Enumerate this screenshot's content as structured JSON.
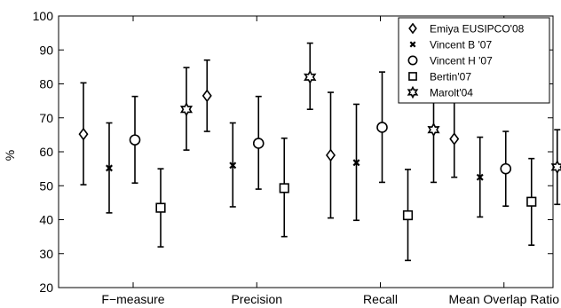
{
  "chart_data": {
    "type": "scatter",
    "title": "",
    "xlabel": "",
    "ylabel": "%",
    "ylim": [
      20,
      100
    ],
    "yticks": [
      20,
      30,
      40,
      50,
      60,
      70,
      80,
      90,
      100
    ],
    "grid": false,
    "legend_position": "top-right",
    "categories": [
      "F−measure",
      "Precision",
      "Recall",
      "Mean Overlap Ratio"
    ],
    "series": [
      {
        "name": "Emiya EUSIPCO'08",
        "marker": "diamond",
        "values": [
          65.2,
          76.5,
          59.0,
          63.8
        ],
        "lower": [
          50.3,
          66.0,
          40.5,
          52.5
        ],
        "upper": [
          80.3,
          87.0,
          77.5,
          75.3
        ]
      },
      {
        "name": "Vincent B '07",
        "marker": "x",
        "values": [
          55.2,
          56.0,
          56.8,
          52.5
        ],
        "lower": [
          42.0,
          43.8,
          39.8,
          40.8
        ],
        "upper": [
          68.5,
          68.5,
          74.0,
          64.3
        ]
      },
      {
        "name": "Vincent H '07",
        "marker": "circle",
        "values": [
          63.5,
          62.5,
          67.2,
          55.0
        ],
        "lower": [
          50.8,
          49.0,
          51.0,
          44.0
        ],
        "upper": [
          76.3,
          76.3,
          83.5,
          66.0
        ]
      },
      {
        "name": "Bertin'07",
        "marker": "square",
        "values": [
          43.5,
          49.3,
          41.3,
          45.3
        ],
        "lower": [
          32.0,
          35.0,
          28.0,
          32.5
        ],
        "upper": [
          55.0,
          64.0,
          54.8,
          58.0
        ]
      },
      {
        "name": "Marolt'04",
        "marker": "star",
        "values": [
          72.5,
          82.0,
          66.5,
          55.5
        ],
        "lower": [
          60.5,
          72.5,
          51.0,
          44.5
        ],
        "upper": [
          84.8,
          92.0,
          82.0,
          66.5
        ]
      }
    ]
  }
}
